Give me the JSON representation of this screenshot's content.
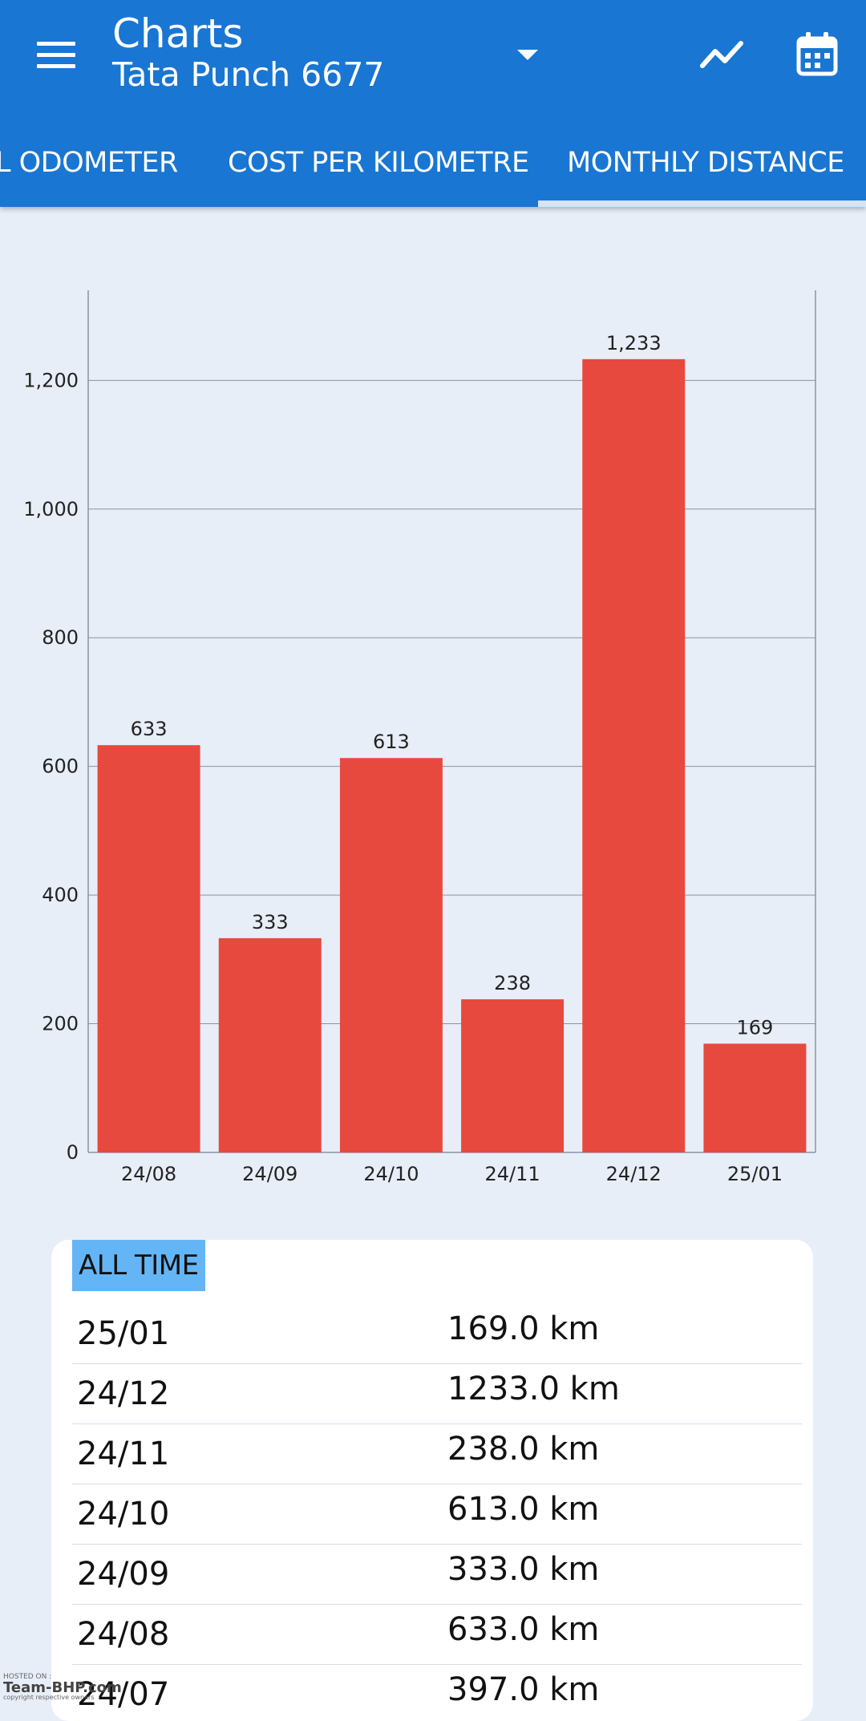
{
  "app_bar": {
    "title": "Charts",
    "subtitle": "Tata Punch 6677",
    "menu_icon": "hamburger-menu-icon",
    "dropdown_icon": "arrow-drop-down-icon",
    "trend_icon": "trending-line-icon",
    "calendar_icon": "calendar-icon",
    "color": "#1976d2"
  },
  "tabs": [
    {
      "label": "L ODOMETER",
      "selected": false
    },
    {
      "label": "COST PER KILOMETRE",
      "selected": false
    },
    {
      "label": "MONTHLY DISTANCE",
      "selected": true
    }
  ],
  "chart_data": {
    "type": "bar",
    "categories": [
      "24/08",
      "24/09",
      "24/10",
      "24/11",
      "24/12",
      "25/01"
    ],
    "values": [
      633,
      333,
      613,
      238,
      1233,
      169
    ],
    "value_labels": [
      "633",
      "333",
      "613",
      "238",
      "1,233",
      "169"
    ],
    "y_ticks": [
      0,
      200,
      400,
      600,
      800,
      1000,
      1200
    ],
    "y_tick_labels": [
      "0",
      "200",
      "400",
      "600",
      "800",
      "1,000",
      "1,200"
    ],
    "ylim": [
      0,
      1340
    ],
    "grid": true,
    "bar_color": "#e8493f"
  },
  "summary": {
    "header": "ALL TIME",
    "rows": [
      {
        "period": "25/01",
        "distance": "169.0 km"
      },
      {
        "period": "24/12",
        "distance": "1233.0 km"
      },
      {
        "period": "24/11",
        "distance": "238.0 km"
      },
      {
        "period": "24/10",
        "distance": "613.0 km"
      },
      {
        "period": "24/09",
        "distance": "333.0 km"
      },
      {
        "period": "24/08",
        "distance": "633.0 km"
      },
      {
        "period": "24/07",
        "distance": "397.0 km"
      }
    ]
  },
  "watermark": {
    "hosted": "HOSTED ON :",
    "brand": "Team-BHP.com",
    "copyright": "copyright respective owners"
  }
}
